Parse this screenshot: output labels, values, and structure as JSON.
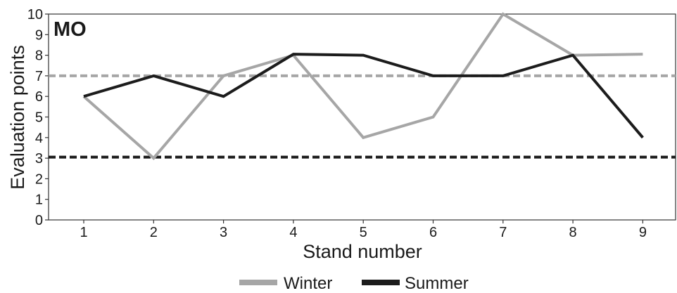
{
  "chart_data": {
    "type": "line",
    "panel_label": "MO",
    "xlabel": "Stand number",
    "ylabel": "Evaluation points",
    "x": [
      1,
      2,
      3,
      4,
      5,
      6,
      7,
      8,
      9
    ],
    "x_ticks": [
      "1",
      "2",
      "3",
      "4",
      "5",
      "6",
      "7",
      "8",
      "9"
    ],
    "y_ticks": [
      "0",
      "1",
      "2",
      "3",
      "4",
      "5",
      "6",
      "7",
      "8",
      "9",
      "10"
    ],
    "ylim": [
      0,
      10
    ],
    "grid": false,
    "legend_position": "bottom",
    "series": [
      {
        "name": "Winter",
        "color": "#a6a6a6",
        "values": [
          6,
          3,
          7,
          8,
          4,
          5,
          10,
          8,
          8.05
        ]
      },
      {
        "name": "Summer",
        "color": "#1c1c1c",
        "values": [
          6,
          7,
          6,
          8.05,
          8,
          7,
          7,
          8,
          4
        ]
      }
    ],
    "reference_lines": [
      {
        "value": 7,
        "color": "#a6a6a6",
        "style": "dashed"
      },
      {
        "value": 3.05,
        "color": "#1c1c1c",
        "style": "dashed"
      }
    ]
  }
}
